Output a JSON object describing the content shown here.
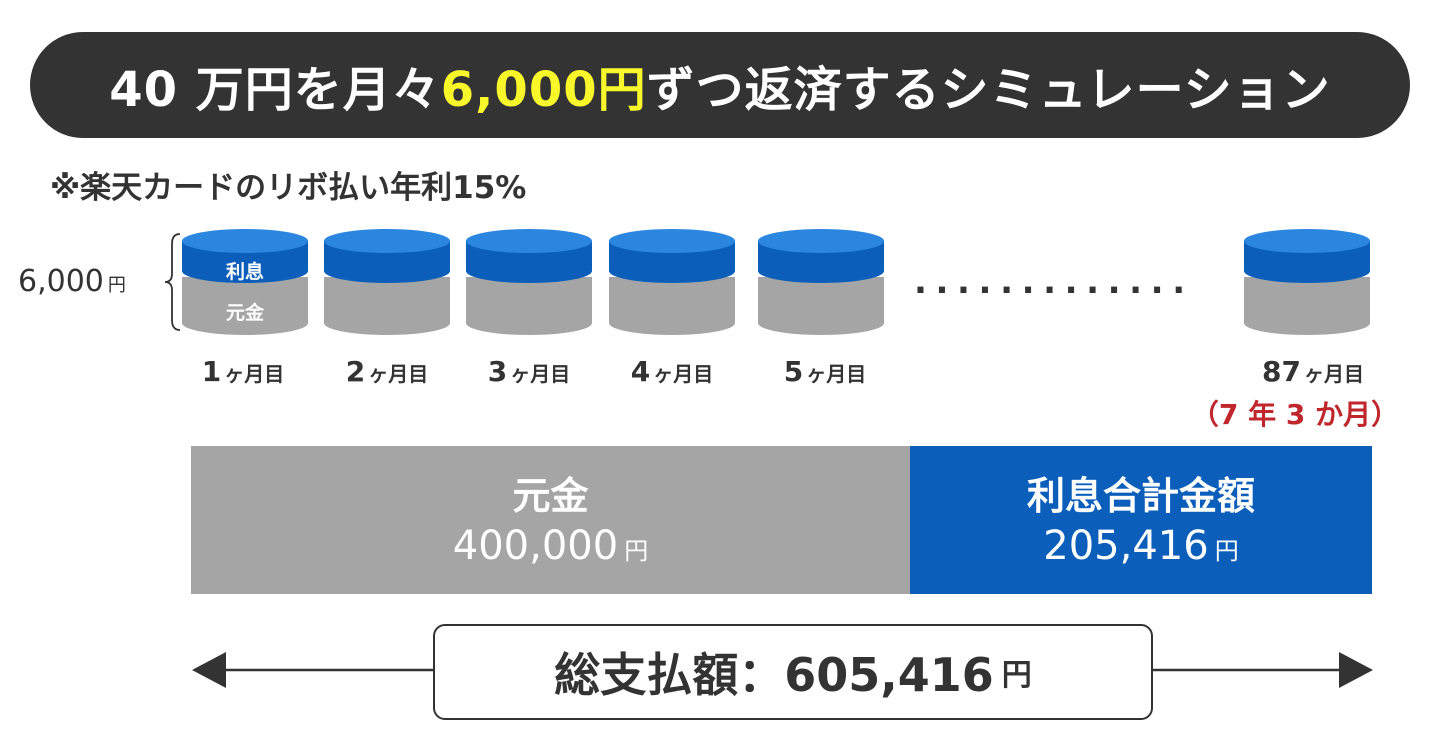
{
  "title": {
    "prefix": "40 万円を月々",
    "highlight": "6,000円",
    "suffix": "ずつ返済するシミュレーション"
  },
  "note": "※楽天カードのリボ払い年利15%",
  "payment": {
    "amount": "6,000",
    "unit": "円"
  },
  "stack_labels": {
    "interest": "利息",
    "principal": "元金"
  },
  "months": [
    {
      "num": "1",
      "suffix": "ヶ月目"
    },
    {
      "num": "2",
      "suffix": "ヶ月目"
    },
    {
      "num": "3",
      "suffix": "ヶ月目"
    },
    {
      "num": "4",
      "suffix": "ヶ月目"
    },
    {
      "num": "5",
      "suffix": "ヶ月目"
    },
    {
      "num": "87",
      "suffix": "ヶ月目"
    }
  ],
  "ellipsis": ".............",
  "period": "（7 年 3 か月）",
  "breakdown": {
    "principal": {
      "label": "元金",
      "value": "400,000",
      "unit": "円"
    },
    "interest": {
      "label": "利息合計金額",
      "value": "205,416",
      "unit": "円"
    }
  },
  "total": {
    "label": "総支払額：605,416",
    "unit": "円"
  },
  "colors": {
    "banner_bg": "#333333",
    "highlight": "#f7f72a",
    "interest_blue": "#0b5fbb",
    "principal_gray": "#a5a5a5",
    "period_red": "#c0272d"
  }
}
